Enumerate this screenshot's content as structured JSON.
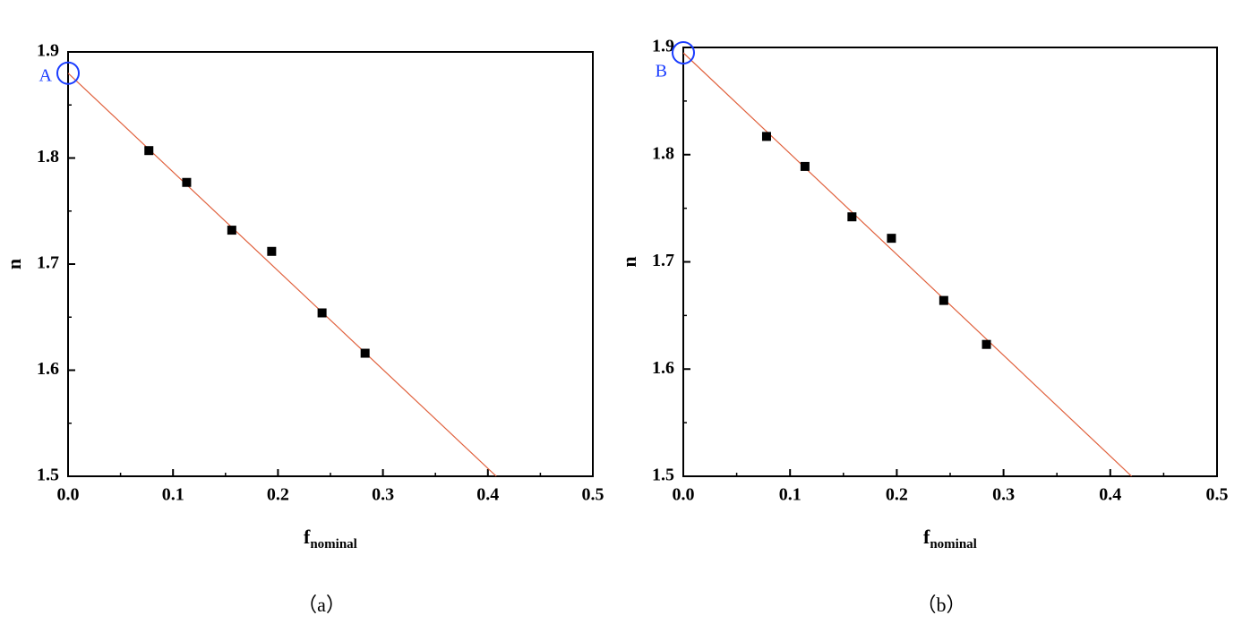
{
  "chart_data": [
    {
      "type": "scatter",
      "caption": "（a）",
      "xlabel": "f",
      "xlabel_subscript": "nominal",
      "ylabel": "n",
      "x": [
        0.077,
        0.113,
        0.156,
        0.194,
        0.242,
        0.283
      ],
      "values": [
        1.807,
        1.777,
        1.732,
        1.712,
        1.654,
        1.616
      ],
      "color": "#000000",
      "fit_line": {
        "x": [
          0,
          0.408
        ],
        "values": [
          1.88,
          1.5
        ],
        "color": "#e0603c"
      },
      "annotation": {
        "label": "A",
        "x": 0,
        "y": 1.88,
        "color": "#1a3cff"
      },
      "xlim": [
        0,
        0.5
      ],
      "ylim": [
        1.5,
        1.9
      ],
      "xticks": [
        {
          "value": 0,
          "label": "0.0"
        },
        0.1,
        0.2,
        0.3,
        0.4,
        0.5
      ],
      "yticks": [
        1.5,
        1.6,
        1.7,
        1.8,
        1.9
      ]
    },
    {
      "type": "scatter",
      "caption": "（b）",
      "xlabel": "f",
      "xlabel_subscript": "nominal",
      "ylabel": "n",
      "x": [
        0.078,
        0.114,
        0.158,
        0.195,
        0.244,
        0.284
      ],
      "values": [
        1.817,
        1.789,
        1.742,
        1.722,
        1.664,
        1.623
      ],
      "color": "#000000",
      "fit_line": {
        "x": [
          0,
          0.42
        ],
        "values": [
          1.895,
          1.5
        ],
        "color": "#e0603c"
      },
      "annotation": {
        "label": "B",
        "x": 0,
        "y": 1.895,
        "color": "#1a3cff"
      },
      "xlim": [
        0,
        0.5
      ],
      "ylim": [
        1.5,
        1.9
      ],
      "xticks": [
        {
          "value": 0,
          "label": "0.0"
        },
        0.1,
        0.2,
        0.3,
        0.4,
        0.5
      ],
      "yticks": [
        1.5,
        1.6,
        1.7,
        1.8,
        1.9
      ]
    }
  ]
}
